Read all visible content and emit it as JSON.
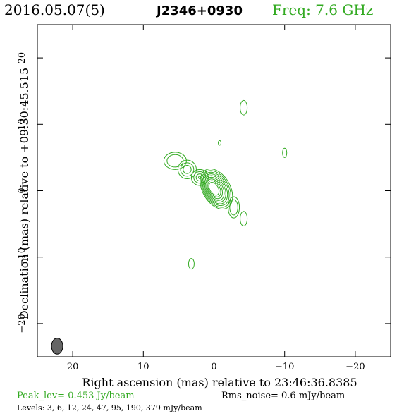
{
  "header": {
    "date": "2016.05.07(5)",
    "source": "J2346+0930",
    "freq": "Freq: 7.6 GHz"
  },
  "chart_data": {
    "type": "contour",
    "xlabel": "Right ascension (mas) relative to 23:46:36.8385",
    "ylabel": "Declination (mas) relative to +09:30:45.515",
    "xlim": [
      25,
      -25
    ],
    "ylim": [
      -25,
      25
    ],
    "xticks": [
      20,
      10,
      0,
      -10,
      -20
    ],
    "xtick_labels": [
      "20",
      "10",
      "0",
      "−10",
      "−20"
    ],
    "yticks": [
      20,
      10,
      0,
      -10,
      -20
    ],
    "ytick_labels": [
      "20",
      "10",
      "0",
      "−10",
      "−20"
    ],
    "contour_color": "#33aa22",
    "beam": {
      "x": 22.2,
      "y": -23.4,
      "major_mas": 2.4,
      "minor_mas": 1.0,
      "pa_deg": 0
    },
    "core": {
      "x": 0.0,
      "y": 0.3
    },
    "components": [
      {
        "x": 5.5,
        "y": 4.5,
        "rx": 1.6,
        "ry": 1.3,
        "n": 2
      },
      {
        "x": 3.8,
        "y": 3.2,
        "rx": 1.3,
        "ry": 1.4,
        "n": 3
      },
      {
        "x": 2.0,
        "y": 2.0,
        "rx": 1.2,
        "ry": 1.2,
        "n": 4
      },
      {
        "x": -2.8,
        "y": -2.5,
        "rx": 0.8,
        "ry": 1.6,
        "n": 2
      },
      {
        "x": -4.2,
        "y": 12.5,
        "rx": 0.5,
        "ry": 1.1,
        "n": 1
      },
      {
        "x": -4.2,
        "y": -4.2,
        "rx": 0.5,
        "ry": 1.1,
        "n": 1
      },
      {
        "x": -10.0,
        "y": 5.7,
        "rx": 0.3,
        "ry": 0.7,
        "n": 1
      },
      {
        "x": -0.8,
        "y": 7.2,
        "rx": 0.2,
        "ry": 0.35,
        "n": 1
      },
      {
        "x": 3.2,
        "y": -11.0,
        "rx": 0.4,
        "ry": 0.8,
        "n": 1
      }
    ]
  },
  "footer": {
    "peak": "Peak_lev=  0.453 Jy/beam",
    "rms": "Rms_noise=  0.6 mJy/beam",
    "levels": "Levels:   3,   6,  12,  24,  47,  95, 190, 379 mJy/beam"
  }
}
